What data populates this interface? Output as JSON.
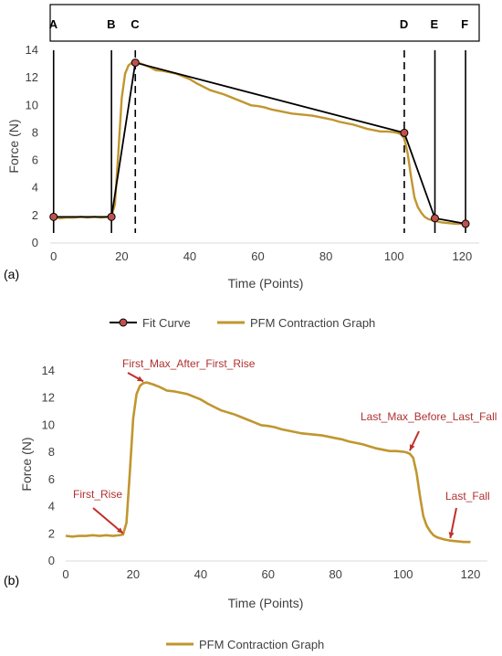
{
  "colors": {
    "fit": "#000000",
    "fit_marker": "#c0504d",
    "pfm": "#c0962f",
    "annot": "#c0302a",
    "axis": "#d9d9d9"
  },
  "chart_data": [
    {
      "type": "line",
      "panel_label": "(a)",
      "xlabel": "Time (Points)",
      "ylabel": "Force (N)",
      "xlim": [
        -1,
        125
      ],
      "ylim": [
        0,
        14
      ],
      "xticks": [
        "0",
        "20",
        "40",
        "60",
        "80",
        "100",
        "120"
      ],
      "yticks": [
        "0",
        "2",
        "4",
        "6",
        "8",
        "10",
        "12",
        "14"
      ],
      "segments": [
        {
          "label": "A",
          "x": 0,
          "style": "solid"
        },
        {
          "label": "B",
          "x": 17,
          "style": "solid"
        },
        {
          "label": "C",
          "x": 24,
          "style": "dashed"
        },
        {
          "label": "D",
          "x": 103,
          "style": "dashed"
        },
        {
          "label": "E",
          "x": 112,
          "style": "solid"
        },
        {
          "label": "F",
          "x": 121,
          "style": "solid"
        }
      ],
      "series": [
        {
          "name": "Fit Curve",
          "x": [
            0,
            17,
            24,
            103,
            112,
            121
          ],
          "y": [
            1.9,
            1.9,
            13.1,
            8.0,
            1.8,
            1.4
          ]
        },
        {
          "name": "PFM Contraction Graph",
          "x": [
            0,
            2,
            4,
            6,
            8,
            10,
            12,
            14,
            16,
            17,
            18,
            19,
            20,
            21,
            22,
            23,
            24,
            26,
            28,
            30,
            32,
            34,
            36,
            38,
            40,
            42,
            44,
            46,
            48,
            50,
            52,
            54,
            56,
            58,
            60,
            62,
            64,
            66,
            68,
            70,
            72,
            74,
            76,
            78,
            80,
            82,
            84,
            86,
            88,
            90,
            92,
            94,
            96,
            98,
            100,
            101,
            102,
            103,
            104,
            105,
            106,
            107,
            108,
            109,
            110,
            112,
            114,
            116,
            118,
            120
          ],
          "y": [
            1.85,
            1.8,
            1.85,
            1.85,
            1.9,
            1.85,
            1.9,
            1.85,
            1.9,
            1.95,
            2.8,
            6.5,
            10.5,
            12.3,
            12.9,
            13.1,
            13.15,
            13.0,
            12.8,
            12.55,
            12.5,
            12.4,
            12.3,
            12.1,
            11.9,
            11.6,
            11.35,
            11.1,
            10.95,
            10.8,
            10.6,
            10.4,
            10.2,
            10.0,
            9.95,
            9.85,
            9.7,
            9.6,
            9.5,
            9.4,
            9.35,
            9.3,
            9.25,
            9.15,
            9.05,
            8.95,
            8.8,
            8.7,
            8.6,
            8.45,
            8.3,
            8.2,
            8.1,
            8.1,
            8.05,
            8.0,
            7.9,
            7.6,
            6.5,
            4.8,
            3.3,
            2.6,
            2.2,
            1.9,
            1.75,
            1.6,
            1.5,
            1.45,
            1.4,
            1.4
          ]
        }
      ],
      "legend": [
        "Fit Curve",
        "PFM Contraction Graph"
      ]
    },
    {
      "type": "line",
      "panel_label": "(b)",
      "xlabel": "Time (Points)",
      "ylabel": "Force (N)",
      "xlim": [
        0,
        125
      ],
      "ylim": [
        0,
        14
      ],
      "xticks": [
        "0",
        "20",
        "40",
        "60",
        "80",
        "100",
        "120"
      ],
      "yticks": [
        "0",
        "2",
        "4",
        "6",
        "8",
        "10",
        "12",
        "14"
      ],
      "series": [
        {
          "name": "PFM Contraction Graph",
          "x": [
            0,
            2,
            4,
            6,
            8,
            10,
            12,
            14,
            16,
            17,
            18,
            19,
            20,
            21,
            22,
            23,
            24,
            26,
            28,
            30,
            32,
            34,
            36,
            38,
            40,
            42,
            44,
            46,
            48,
            50,
            52,
            54,
            56,
            58,
            60,
            62,
            64,
            66,
            68,
            70,
            72,
            74,
            76,
            78,
            80,
            82,
            84,
            86,
            88,
            90,
            92,
            94,
            96,
            98,
            100,
            101,
            102,
            103,
            104,
            105,
            106,
            107,
            108,
            109,
            110,
            112,
            114,
            116,
            118,
            120
          ],
          "y": [
            1.85,
            1.8,
            1.85,
            1.85,
            1.9,
            1.85,
            1.9,
            1.85,
            1.9,
            1.95,
            2.8,
            6.5,
            10.5,
            12.3,
            12.9,
            13.1,
            13.15,
            13.0,
            12.8,
            12.55,
            12.5,
            12.4,
            12.3,
            12.1,
            11.9,
            11.6,
            11.35,
            11.1,
            10.95,
            10.8,
            10.6,
            10.4,
            10.2,
            10.0,
            9.95,
            9.85,
            9.7,
            9.6,
            9.5,
            9.4,
            9.35,
            9.3,
            9.25,
            9.15,
            9.05,
            8.95,
            8.8,
            8.7,
            8.6,
            8.45,
            8.3,
            8.2,
            8.1,
            8.1,
            8.05,
            8.0,
            7.9,
            7.6,
            6.5,
            4.8,
            3.3,
            2.6,
            2.2,
            1.9,
            1.75,
            1.6,
            1.5,
            1.45,
            1.4,
            1.4
          ]
        }
      ],
      "annotations": [
        {
          "text": "First_Rise",
          "target": [
            17,
            1.9
          ]
        },
        {
          "text": "First_Max_After_First_Rise",
          "target": [
            23,
            13.1
          ]
        },
        {
          "text": "Last_Max_Before_Last_Fall",
          "target": [
            102,
            8.0
          ]
        },
        {
          "text": "Last_Fall",
          "target": [
            114,
            1.55
          ]
        }
      ],
      "legend": [
        "PFM Contraction Graph"
      ]
    }
  ]
}
